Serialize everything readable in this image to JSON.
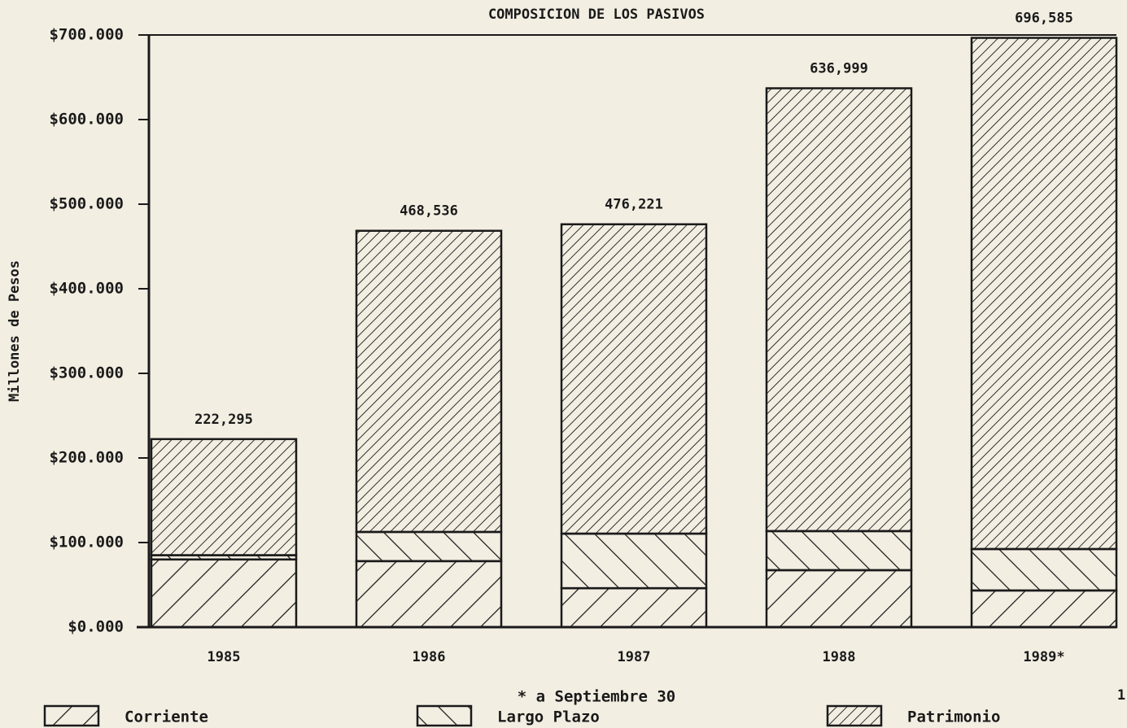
{
  "chart_data": {
    "type": "stacked_bar",
    "title": "COMPOSICION DE LOS PASIVOS",
    "ylabel": "Millones de Pesos",
    "footnote": "* a Septiembre 30",
    "page_number": "1",
    "categories": [
      "1985",
      "1986",
      "1987",
      "1988",
      "1989*"
    ],
    "series": [
      {
        "name": "Corriente",
        "color": "#1a1a1a",
        "values": [
          80000,
          78000,
          46000,
          67300,
          43300
        ]
      },
      {
        "name": "Largo Plazo",
        "color": "#1a1a1a",
        "values": [
          5000,
          34500,
          64500,
          46200,
          49000
        ]
      },
      {
        "name": "Patrimonio",
        "color": "#1a1a1a",
        "values": [
          137295,
          356036,
          365721,
          523499,
          604285
        ]
      }
    ],
    "totals": [
      222295,
      468536,
      476221,
      636999,
      696585
    ],
    "total_labels": [
      "222,295",
      "468,536",
      "476,221",
      "636,999",
      "696,585"
    ],
    "ylim": [
      0,
      700000
    ],
    "yticks": [
      {
        "value": 0,
        "label": "$0.000"
      },
      {
        "value": 100000,
        "label": "$100.000"
      },
      {
        "value": 200000,
        "label": "$200.000"
      },
      {
        "value": 300000,
        "label": "$300.000"
      },
      {
        "value": 400000,
        "label": "$400.000"
      },
      {
        "value": 500000,
        "label": "$500.000"
      },
      {
        "value": 600000,
        "label": "$600.000"
      },
      {
        "value": 700000,
        "label": "$700.000"
      }
    ],
    "grid": false
  }
}
